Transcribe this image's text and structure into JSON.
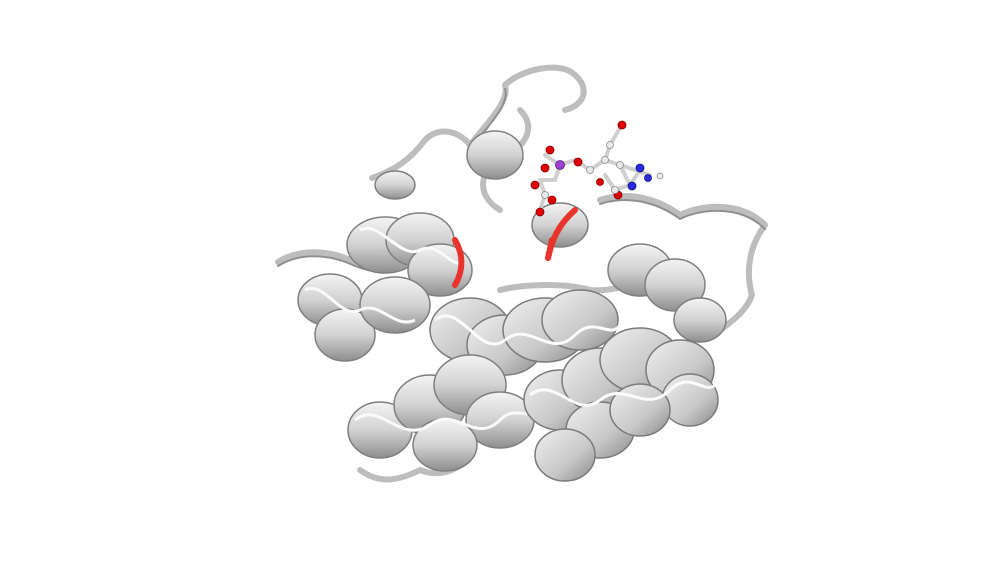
{
  "scene": {
    "background_color": "#ffffff",
    "ribbon_color": "#d4d4d4",
    "ribbon_shade": "#9a9a9a",
    "ribbon_highlight": "#f2f2f2",
    "highlight_residue_color": "#e8342c",
    "ligand_carbon_color": "#e6e6e6",
    "ligand_oxygen_color": "#e00000",
    "ligand_nitrogen_color": "#2a2ae0",
    "ligand_phosphorus_color": "#a040d0"
  }
}
